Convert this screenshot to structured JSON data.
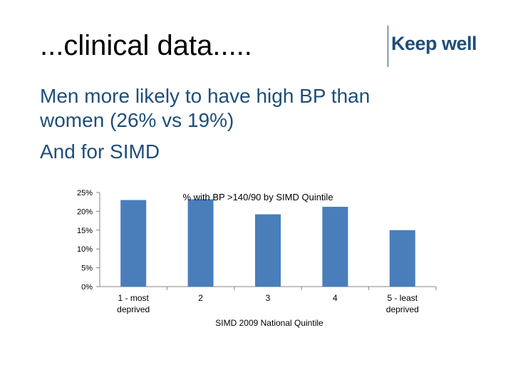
{
  "slide": {
    "title": "...clinical data.....",
    "logo_text": "Keep well",
    "body_lines": [
      "Men more likely to have high BP than women (26% vs 19%)",
      "And for SIMD"
    ]
  },
  "colors": {
    "text_blue": "#1f4e79",
    "bar_blue": "#4a7ebb"
  },
  "chart_data": {
    "type": "bar",
    "title": "% with BP >140/90 by SIMD Quintile",
    "xlabel": "SIMD 2009 National Quintile",
    "ylabel": "",
    "categories": [
      [
        "1 - most",
        "deprived"
      ],
      [
        "2"
      ],
      [
        "3"
      ],
      [
        "4"
      ],
      [
        "5 - least",
        "deprived"
      ]
    ],
    "values": [
      23.0,
      23.2,
      19.2,
      21.2,
      15.0
    ],
    "ylim": [
      0,
      25
    ],
    "yticks": [
      "0%",
      "5%",
      "10%",
      "15%",
      "20%",
      "25%"
    ],
    "ytick_values": [
      0,
      5,
      10,
      15,
      20,
      25
    ],
    "grid": false
  }
}
